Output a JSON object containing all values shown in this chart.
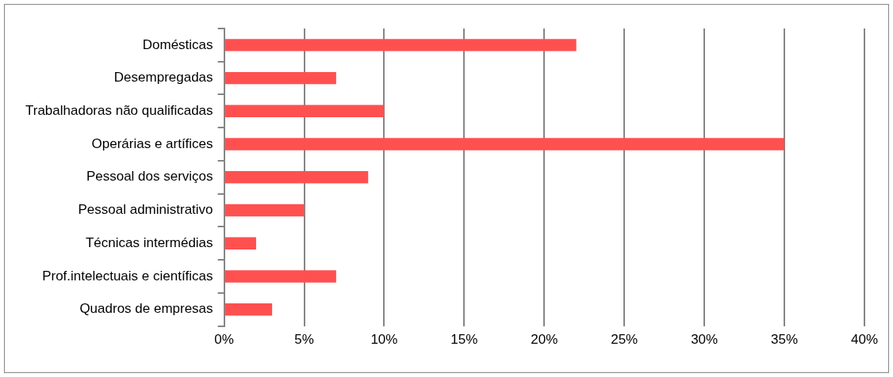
{
  "chart_data": {
    "type": "bar",
    "orientation": "horizontal",
    "categories": [
      "Domésticas",
      "Desempregadas",
      "Trabalhadoras não qualificadas",
      "Operárias e artífices",
      "Pessoal dos serviços",
      "Pessoal administrativo",
      "Técnicas intermédias",
      "Prof.intelectuais e científicas",
      "Quadros de empresas"
    ],
    "values": [
      22,
      7,
      10,
      35,
      9,
      5,
      2,
      7,
      3
    ],
    "color": "#ff5050",
    "xlim": [
      0,
      40
    ],
    "xticks": [
      {
        "value": 0,
        "label": "0%"
      },
      {
        "value": 5,
        "label": "5%"
      },
      {
        "value": 10,
        "label": "10%"
      },
      {
        "value": 15,
        "label": "15%"
      },
      {
        "value": 20,
        "label": "20%"
      },
      {
        "value": 25,
        "label": "25%"
      },
      {
        "value": 30,
        "label": "30%"
      },
      {
        "value": 35,
        "label": "35%"
      },
      {
        "value": 40,
        "label": "40%"
      }
    ],
    "grid": "x",
    "legend": false
  }
}
